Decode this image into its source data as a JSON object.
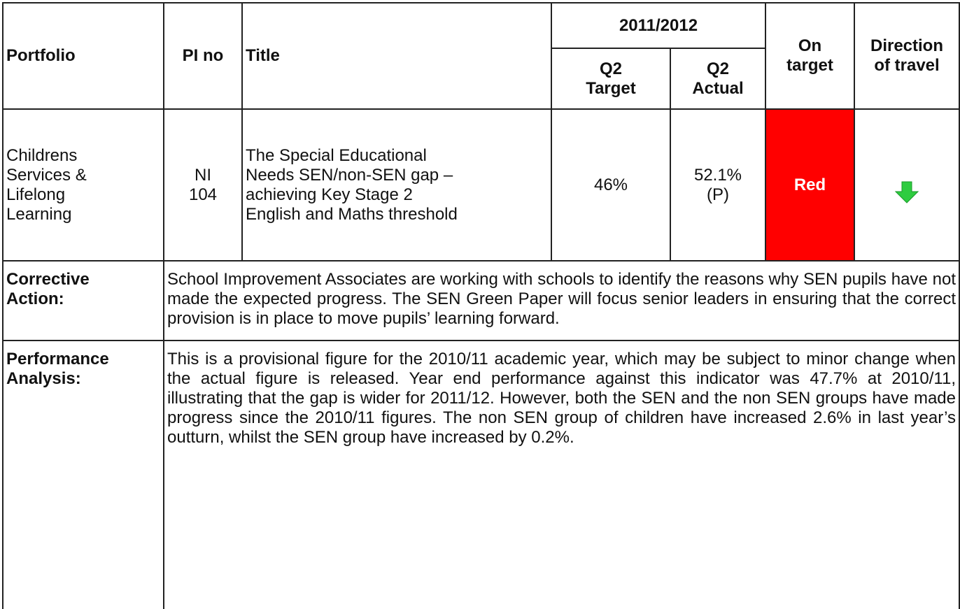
{
  "header": {
    "portfolio": "Portfolio",
    "pi_no": "PI no",
    "title": "Title",
    "period": "2011/2012",
    "q2_target": "Q2\nTarget",
    "q2_actual": "Q2\nActual",
    "on_target": "On\ntarget",
    "direction": "Direction\nof travel"
  },
  "row": {
    "portfolio": "Childrens\nServices &\nLifelong\nLearning",
    "pi_no": "NI\n104",
    "title": "The Special Educational\nNeeds SEN/non-SEN gap –\nachieving Key Stage 2\nEnglish and Maths threshold",
    "q2_target": "46%",
    "q2_actual": "52.1%\n(P)",
    "on_target": "Red"
  },
  "corrective": {
    "label": "Corrective\nAction:",
    "text": "School Improvement Associates are working with schools to identify the reasons why SEN pupils have not made the expected progress. The SEN Green Paper will focus senior leaders in ensuring that the correct provision is in place to move pupils’ learning forward."
  },
  "performance": {
    "label": "Performance\nAnalysis:",
    "text": "This is a provisional figure for the 2010/11 academic year, which may be subject to minor change when the actual figure is released. Year end performance against this indicator was 47.7% at 2010/11, illustrating that the gap is wider for 2011/12. However, both the SEN and the non SEN groups have made progress since the 2010/11 figures. The non SEN group of children have increased 2.6% in last year’s outturn, whilst the SEN group have increased by 0.2%."
  }
}
